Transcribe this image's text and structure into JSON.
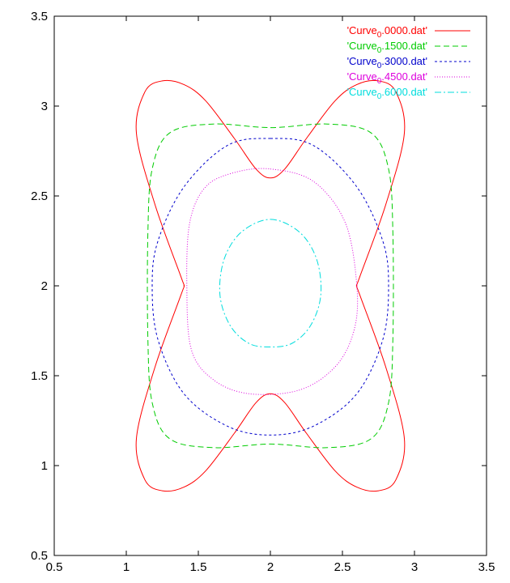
{
  "chart_data": {
    "type": "line",
    "title": "",
    "xlabel": "",
    "ylabel": "",
    "xlim": [
      0.5,
      3.5
    ],
    "ylim": [
      0.5,
      3.5
    ],
    "xticks": [
      "0.5",
      "1",
      "1.5",
      "2",
      "2.5",
      "3",
      "3.5"
    ],
    "yticks": [
      "0.5",
      "1",
      "1.5",
      "2",
      "2.5",
      "3",
      "3.5"
    ],
    "grid": false,
    "legend_position": "top-right",
    "series": [
      {
        "name": "'Curve",
        "name_sub": "0",
        "name_rest": ".0000.dat'",
        "color": "#ff0000",
        "dash": "solid",
        "x": [
          2.0,
          2.1,
          2.25,
          2.45,
          2.6,
          2.75,
          2.87,
          2.93,
          2.8,
          2.62,
          2.6,
          2.62,
          2.8,
          2.93,
          2.87,
          2.75,
          2.6,
          2.45,
          2.25,
          2.1,
          2.0,
          1.9,
          1.75,
          1.55,
          1.4,
          1.25,
          1.13,
          1.07,
          1.2,
          1.38,
          1.4,
          1.38,
          1.2,
          1.07,
          1.13,
          1.25,
          1.4,
          1.55,
          1.75,
          1.9,
          2.0
        ],
        "y": [
          1.4,
          1.35,
          1.18,
          0.97,
          0.88,
          0.86,
          0.92,
          1.15,
          1.55,
          1.95,
          2.0,
          2.05,
          2.45,
          2.85,
          3.08,
          3.14,
          3.12,
          3.03,
          2.82,
          2.65,
          2.6,
          2.65,
          2.82,
          3.03,
          3.12,
          3.14,
          3.08,
          2.85,
          2.45,
          2.05,
          2.0,
          1.95,
          1.55,
          1.15,
          0.92,
          0.86,
          0.88,
          0.97,
          1.18,
          1.35,
          1.4
        ]
      },
      {
        "name": "'Curve",
        "name_sub": "0",
        "name_rest": ".1500.dat'",
        "color": "#00cc00",
        "dash": "7,4",
        "x": [
          2.0,
          2.4,
          2.7,
          2.82,
          2.85,
          2.85,
          2.82,
          2.7,
          2.4,
          2.0,
          1.6,
          1.3,
          1.18,
          1.15,
          1.15,
          1.18,
          1.3,
          1.6,
          2.0
        ],
        "y": [
          2.88,
          2.9,
          2.85,
          2.65,
          2.3,
          1.7,
          1.35,
          1.15,
          1.1,
          1.12,
          1.1,
          1.15,
          1.35,
          1.7,
          2.3,
          2.65,
          2.85,
          2.9,
          2.88
        ]
      },
      {
        "name": "'Curve",
        "name_sub": "0",
        "name_rest": ".3000.dat'",
        "color": "#0000cc",
        "dash": "3,3",
        "x": [
          2.0,
          2.3,
          2.6,
          2.78,
          2.82,
          2.78,
          2.6,
          2.3,
          2.0,
          1.7,
          1.4,
          1.22,
          1.18,
          1.22,
          1.4,
          1.7,
          2.0
        ],
        "y": [
          2.82,
          2.78,
          2.55,
          2.25,
          2.0,
          1.7,
          1.4,
          1.22,
          1.17,
          1.22,
          1.4,
          1.7,
          2.0,
          2.25,
          2.55,
          2.78,
          2.82
        ]
      },
      {
        "name": "'Curve",
        "name_sub": "0",
        "name_rest": ".4500.dat'",
        "color": "#dd00dd",
        "dash": "1,2",
        "x": [
          2.0,
          2.3,
          2.52,
          2.6,
          2.58,
          2.45,
          2.2,
          1.85,
          1.6,
          1.45,
          1.42,
          1.44,
          1.55,
          1.75,
          2.0
        ],
        "y": [
          2.65,
          2.58,
          2.35,
          2.0,
          1.75,
          1.55,
          1.42,
          1.4,
          1.48,
          1.65,
          2.0,
          2.35,
          2.55,
          2.63,
          2.65
        ]
      },
      {
        "name": "'Curve",
        "name_sub": "0",
        "name_rest": ".6000.dat'",
        "color": "#00dddd",
        "dash": "8,3,2,3",
        "x": [
          2.0,
          2.2,
          2.32,
          2.35,
          2.28,
          2.15,
          2.0,
          1.85,
          1.72,
          1.65,
          1.68,
          1.8,
          2.0
        ],
        "y": [
          2.37,
          2.3,
          2.15,
          1.95,
          1.78,
          1.68,
          1.66,
          1.68,
          1.78,
          1.95,
          2.15,
          2.3,
          2.37
        ]
      }
    ]
  }
}
